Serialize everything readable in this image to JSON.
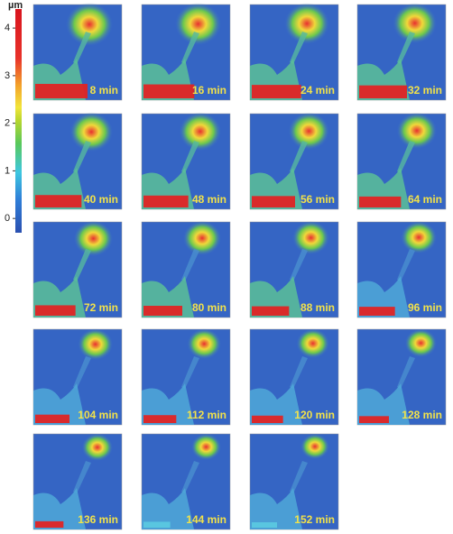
{
  "colorbar": {
    "unit": "µm",
    "lim": [
      -0.3,
      4.4
    ],
    "ticks": [
      0,
      1,
      2,
      3,
      4
    ]
  },
  "panels": [
    {
      "label": "8 min"
    },
    {
      "label": "16 min"
    },
    {
      "label": "24 min"
    },
    {
      "label": "32 min"
    },
    {
      "label": "40 min"
    },
    {
      "label": "48 min"
    },
    {
      "label": "56 min"
    },
    {
      "label": "64 min"
    },
    {
      "label": "72 min"
    },
    {
      "label": "80 min"
    },
    {
      "label": "88 min"
    },
    {
      "label": "96 min"
    },
    {
      "label": "104 min"
    },
    {
      "label": "112 min"
    },
    {
      "label": "120 min"
    },
    {
      "label": "128 min"
    },
    {
      "label": "136 min"
    },
    {
      "label": "144 min"
    },
    {
      "label": "152 min"
    }
  ]
}
